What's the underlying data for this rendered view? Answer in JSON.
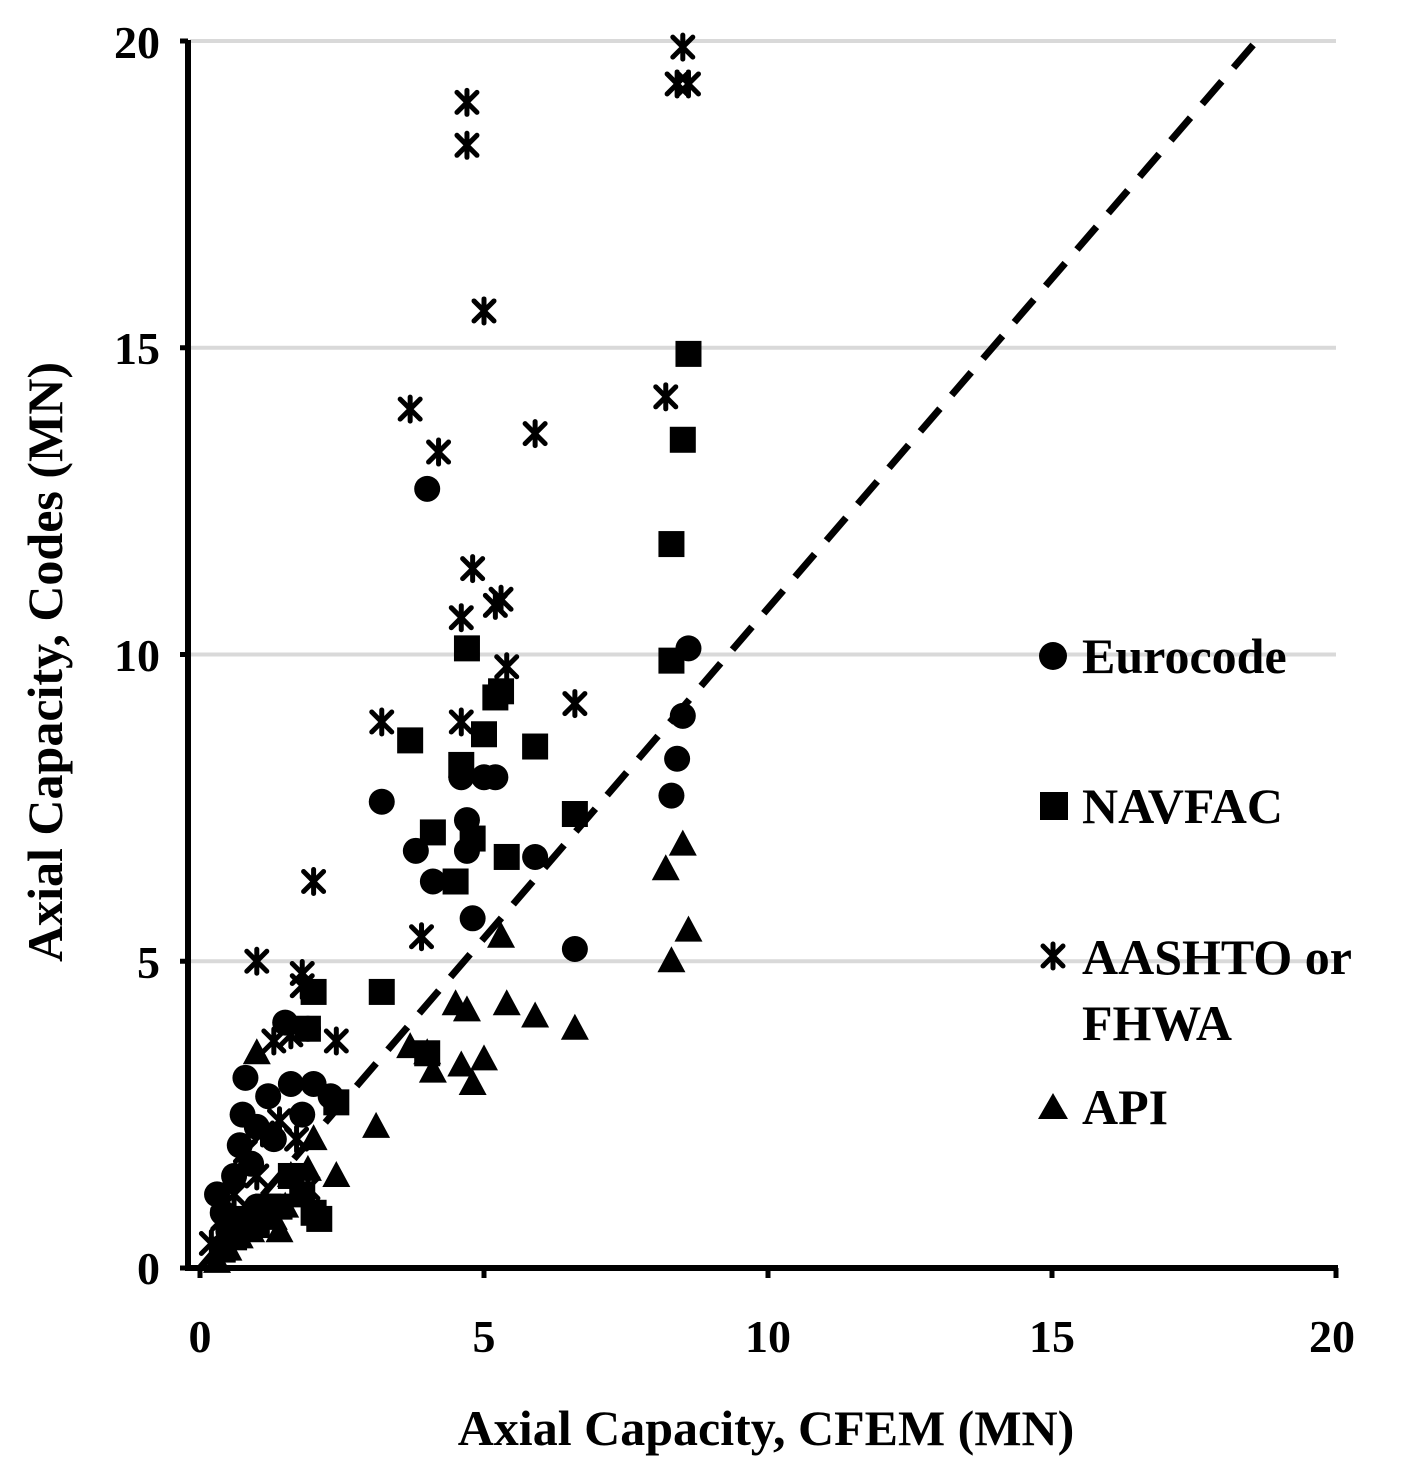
{
  "chart_data": {
    "type": "scatter",
    "title": "",
    "xlabel": "Axial Capacity, CFEM (MN)",
    "ylabel": "Axial Capacity, Codes (MN)",
    "xlim": [
      0,
      20
    ],
    "ylim": [
      0,
      20
    ],
    "xticks": [
      "0",
      "5",
      "10",
      "15",
      "20"
    ],
    "yticks": [
      "0",
      "5",
      "10",
      "15",
      "20"
    ],
    "grid": "horizontal",
    "legend_position": "right",
    "reference_line": {
      "style": "dashed",
      "x": [
        0,
        18.6
      ],
      "y": [
        0,
        20
      ]
    },
    "series": [
      {
        "name": "Eurocode",
        "marker": "circle",
        "points": [
          [
            0.3,
            1.2
          ],
          [
            0.4,
            0.9
          ],
          [
            0.5,
            0.6
          ],
          [
            0.6,
            1.5
          ],
          [
            0.7,
            2.0
          ],
          [
            0.75,
            2.5
          ],
          [
            0.8,
            3.1
          ],
          [
            0.9,
            1.7
          ],
          [
            1.0,
            2.3
          ],
          [
            1.0,
            1.0
          ],
          [
            1.2,
            2.8
          ],
          [
            1.3,
            2.1
          ],
          [
            1.5,
            4.0
          ],
          [
            1.6,
            3.0
          ],
          [
            1.8,
            2.5
          ],
          [
            1.9,
            3.9
          ],
          [
            2.0,
            3.0
          ],
          [
            2.3,
            2.8
          ],
          [
            3.2,
            7.6
          ],
          [
            3.8,
            6.8
          ],
          [
            4.0,
            12.7
          ],
          [
            4.1,
            6.3
          ],
          [
            4.6,
            8.0
          ],
          [
            4.7,
            7.3
          ],
          [
            4.7,
            6.8
          ],
          [
            4.8,
            5.7
          ],
          [
            5.0,
            8.0
          ],
          [
            5.2,
            8.0
          ],
          [
            5.9,
            6.7
          ],
          [
            6.6,
            5.2
          ],
          [
            8.3,
            7.7
          ],
          [
            8.4,
            8.3
          ],
          [
            8.5,
            9.0
          ],
          [
            8.6,
            10.1
          ]
        ]
      },
      {
        "name": "NAVFAC",
        "marker": "square",
        "points": [
          [
            0.4,
            0.3
          ],
          [
            0.6,
            0.5
          ],
          [
            0.8,
            0.8
          ],
          [
            1.0,
            0.7
          ],
          [
            1.2,
            1.0
          ],
          [
            1.4,
            1.0
          ],
          [
            1.6,
            1.5
          ],
          [
            1.8,
            1.2
          ],
          [
            1.9,
            3.9
          ],
          [
            2.0,
            0.9
          ],
          [
            2.1,
            0.8
          ],
          [
            2.0,
            4.5
          ],
          [
            2.4,
            2.7
          ],
          [
            3.2,
            4.5
          ],
          [
            3.7,
            8.6
          ],
          [
            4.0,
            3.5
          ],
          [
            4.1,
            7.1
          ],
          [
            4.5,
            6.3
          ],
          [
            4.6,
            8.2
          ],
          [
            4.7,
            10.1
          ],
          [
            4.8,
            7.0
          ],
          [
            5.0,
            8.7
          ],
          [
            5.2,
            9.3
          ],
          [
            5.3,
            9.4
          ],
          [
            5.4,
            6.7
          ],
          [
            5.9,
            8.5
          ],
          [
            6.6,
            7.4
          ],
          [
            8.3,
            9.9
          ],
          [
            8.3,
            11.8
          ],
          [
            8.5,
            13.5
          ],
          [
            8.6,
            14.9
          ]
        ]
      },
      {
        "name": "AASHTO or FHWA",
        "marker": "star",
        "points": [
          [
            0.2,
            0.4
          ],
          [
            0.4,
            0.8
          ],
          [
            0.6,
            1.2
          ],
          [
            0.8,
            1.9
          ],
          [
            1.0,
            5.0
          ],
          [
            1.0,
            1.5
          ],
          [
            1.1,
            2.2
          ],
          [
            1.3,
            3.7
          ],
          [
            1.4,
            2.4
          ],
          [
            1.6,
            3.8
          ],
          [
            1.7,
            2.1
          ],
          [
            1.8,
            4.6
          ],
          [
            1.8,
            4.8
          ],
          [
            2.0,
            6.3
          ],
          [
            1.9,
            1.3
          ],
          [
            2.4,
            3.7
          ],
          [
            3.2,
            8.9
          ],
          [
            3.7,
            14.0
          ],
          [
            3.9,
            5.4
          ],
          [
            4.2,
            13.3
          ],
          [
            4.6,
            10.6
          ],
          [
            4.6,
            8.9
          ],
          [
            4.7,
            18.3
          ],
          [
            4.7,
            19.0
          ],
          [
            4.8,
            11.4
          ],
          [
            5.0,
            15.6
          ],
          [
            5.2,
            10.8
          ],
          [
            5.3,
            10.9
          ],
          [
            5.4,
            9.8
          ],
          [
            5.9,
            13.6
          ],
          [
            6.6,
            9.2
          ],
          [
            8.2,
            14.2
          ],
          [
            8.4,
            19.3
          ],
          [
            8.5,
            19.9
          ],
          [
            8.6,
            19.3
          ]
        ]
      },
      {
        "name": "API",
        "marker": "triangle",
        "points": [
          [
            0.3,
            0.1
          ],
          [
            0.5,
            0.3
          ],
          [
            0.7,
            0.5
          ],
          [
            0.9,
            0.6
          ],
          [
            1.0,
            3.5
          ],
          [
            1.1,
            0.9
          ],
          [
            1.3,
            0.8
          ],
          [
            1.4,
            0.6
          ],
          [
            1.5,
            1.0
          ],
          [
            1.6,
            1.5
          ],
          [
            1.8,
            1.2
          ],
          [
            1.9,
            1.6
          ],
          [
            2.0,
            2.1
          ],
          [
            2.4,
            1.5
          ],
          [
            3.1,
            2.3
          ],
          [
            3.7,
            3.6
          ],
          [
            4.0,
            3.5
          ],
          [
            4.1,
            3.2
          ],
          [
            4.5,
            4.3
          ],
          [
            4.6,
            3.3
          ],
          [
            4.7,
            4.2
          ],
          [
            4.8,
            3.0
          ],
          [
            5.0,
            3.4
          ],
          [
            5.3,
            5.4
          ],
          [
            5.4,
            4.3
          ],
          [
            5.9,
            4.1
          ],
          [
            6.6,
            3.9
          ],
          [
            8.2,
            6.5
          ],
          [
            8.3,
            5.0
          ],
          [
            8.5,
            6.9
          ],
          [
            8.6,
            5.5
          ]
        ]
      }
    ],
    "legend": [
      {
        "label": "Eurocode",
        "marker": "circle"
      },
      {
        "label": "NAVFAC",
        "marker": "square"
      },
      {
        "label": "AASHTO or",
        "label2": "FHWA",
        "marker": "star"
      },
      {
        "label": "API",
        "marker": "triangle"
      }
    ]
  }
}
